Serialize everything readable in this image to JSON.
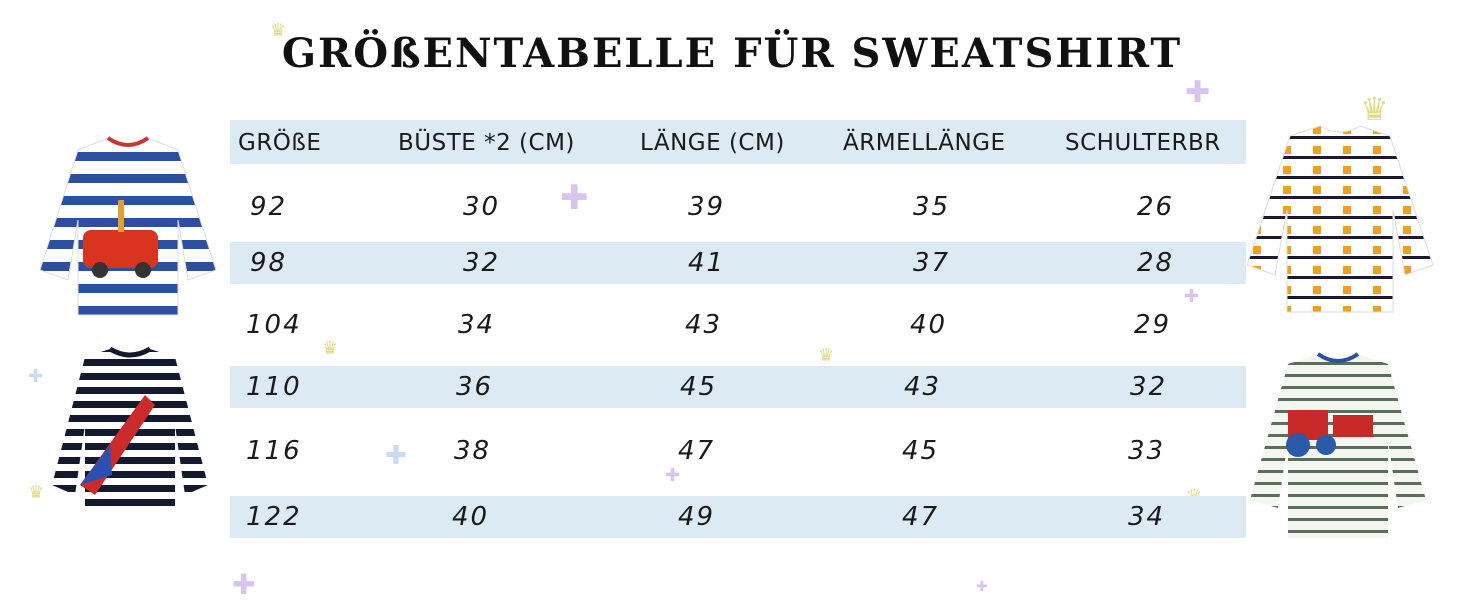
{
  "title": "GRÖßENTABELLE FÜR SWEATSHIRT",
  "table": {
    "headers": [
      "GRÖßE",
      "BÜSTE *2 (CM)",
      "LÄNGE (CM)",
      "ÄRMELLÄNGE",
      "SCHULTERBR"
    ],
    "rows": [
      [
        "92",
        "30",
        "39",
        "35",
        "26"
      ],
      [
        "98",
        "32",
        "41",
        "37",
        "28"
      ],
      [
        "104",
        "34",
        "43",
        "40",
        "29"
      ],
      [
        "110",
        "36",
        "45",
        "43",
        "32"
      ],
      [
        "116",
        "38",
        "47",
        "45",
        "33"
      ],
      [
        "122",
        "40",
        "49",
        "47",
        "34"
      ]
    ]
  },
  "colors": {
    "row_shade": "#dceaf4",
    "title": "#111111",
    "crown": "#e8d98a",
    "puzzle": "#d9c4f0"
  }
}
